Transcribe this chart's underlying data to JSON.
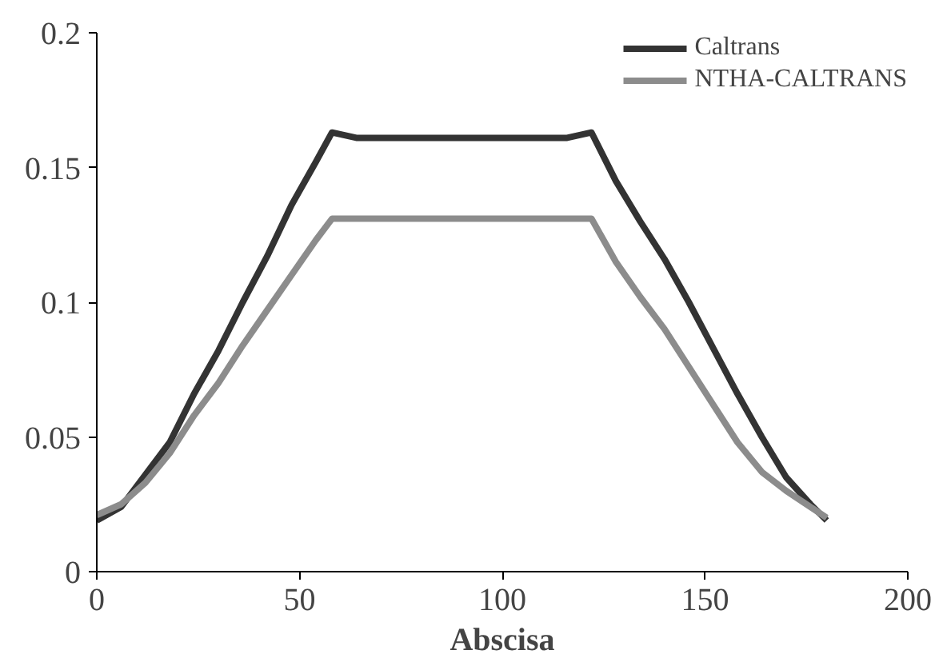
{
  "chart_data": {
    "type": "line",
    "xlabel": "Abscisa",
    "xlim": [
      0,
      200
    ],
    "xticks": [
      0,
      50,
      100,
      150,
      200
    ],
    "ylim": [
      0,
      0.2
    ],
    "yticks": [
      0,
      0.05,
      0.1,
      0.15,
      0.2
    ],
    "grid": false,
    "legend": "top right",
    "line_style": "solid",
    "marker": "none",
    "series": [
      {
        "name": "Caltrans",
        "color": "#333333",
        "x": [
          0,
          6,
          12,
          18,
          24,
          30,
          36,
          42,
          48,
          54,
          58,
          64,
          80,
          100,
          116,
          122,
          128,
          134,
          140,
          146,
          152,
          158,
          164,
          170,
          176,
          180
        ],
        "values": [
          0.019,
          0.024,
          0.036,
          0.048,
          0.066,
          0.082,
          0.1,
          0.117,
          0.136,
          0.152,
          0.163,
          0.161,
          0.161,
          0.161,
          0.161,
          0.163,
          0.145,
          0.13,
          0.116,
          0.1,
          0.083,
          0.066,
          0.05,
          0.035,
          0.025,
          0.019
        ]
      },
      {
        "name": "NTHA-CALTRANS",
        "color": "#8c8c8c",
        "x": [
          0,
          6,
          12,
          18,
          24,
          30,
          36,
          42,
          48,
          54,
          58,
          80,
          100,
          122,
          128,
          134,
          140,
          146,
          152,
          158,
          164,
          170,
          176,
          180
        ],
        "values": [
          0.021,
          0.025,
          0.033,
          0.044,
          0.058,
          0.07,
          0.084,
          0.097,
          0.11,
          0.123,
          0.131,
          0.131,
          0.131,
          0.131,
          0.115,
          0.102,
          0.09,
          0.076,
          0.062,
          0.048,
          0.037,
          0.03,
          0.024,
          0.02
        ]
      }
    ]
  }
}
